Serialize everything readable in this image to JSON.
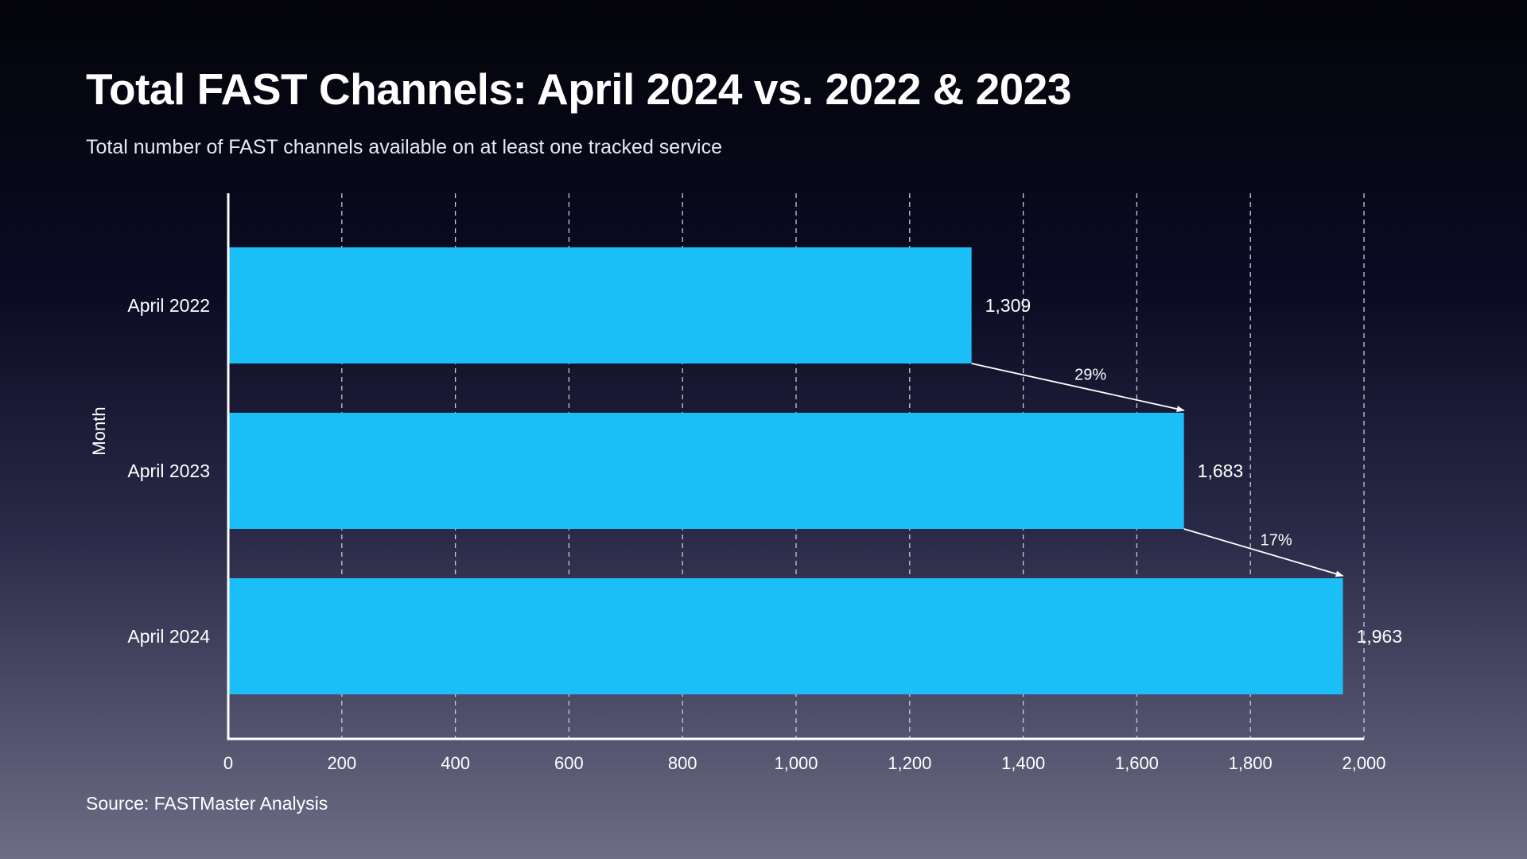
{
  "header": {
    "title": "Total FAST Channels: April 2024 vs. 2022 & 2023",
    "subtitle": "Total number of FAST channels available on at least one tracked service"
  },
  "footer": {
    "source": "Source: FASTMaster Analysis"
  },
  "colors": {
    "bar": "#1bbff8",
    "text": "#ffffff",
    "gridline": "#c8c8d8"
  },
  "chart_data": {
    "type": "bar",
    "orientation": "horizontal",
    "ylabel": "Month",
    "xlabel": "",
    "categories": [
      "April 2022",
      "April 2023",
      "April 2024"
    ],
    "values": [
      1309,
      1683,
      1963
    ],
    "value_labels": [
      "1,309",
      "1,683",
      "1,963"
    ],
    "xlim": [
      0,
      2000
    ],
    "xticks": [
      0,
      200,
      400,
      600,
      800,
      1000,
      1200,
      1400,
      1600,
      1800,
      2000
    ],
    "xtick_labels": [
      "0",
      "200",
      "400",
      "600",
      "800",
      "1,000",
      "1,200",
      "1,400",
      "1,600",
      "1,800",
      "2,000"
    ],
    "grid": "vertical dashed",
    "annotations": [
      {
        "from": "April 2022",
        "to": "April 2023",
        "label": "29%"
      },
      {
        "from": "April 2023",
        "to": "April 2024",
        "label": "17%"
      }
    ]
  }
}
